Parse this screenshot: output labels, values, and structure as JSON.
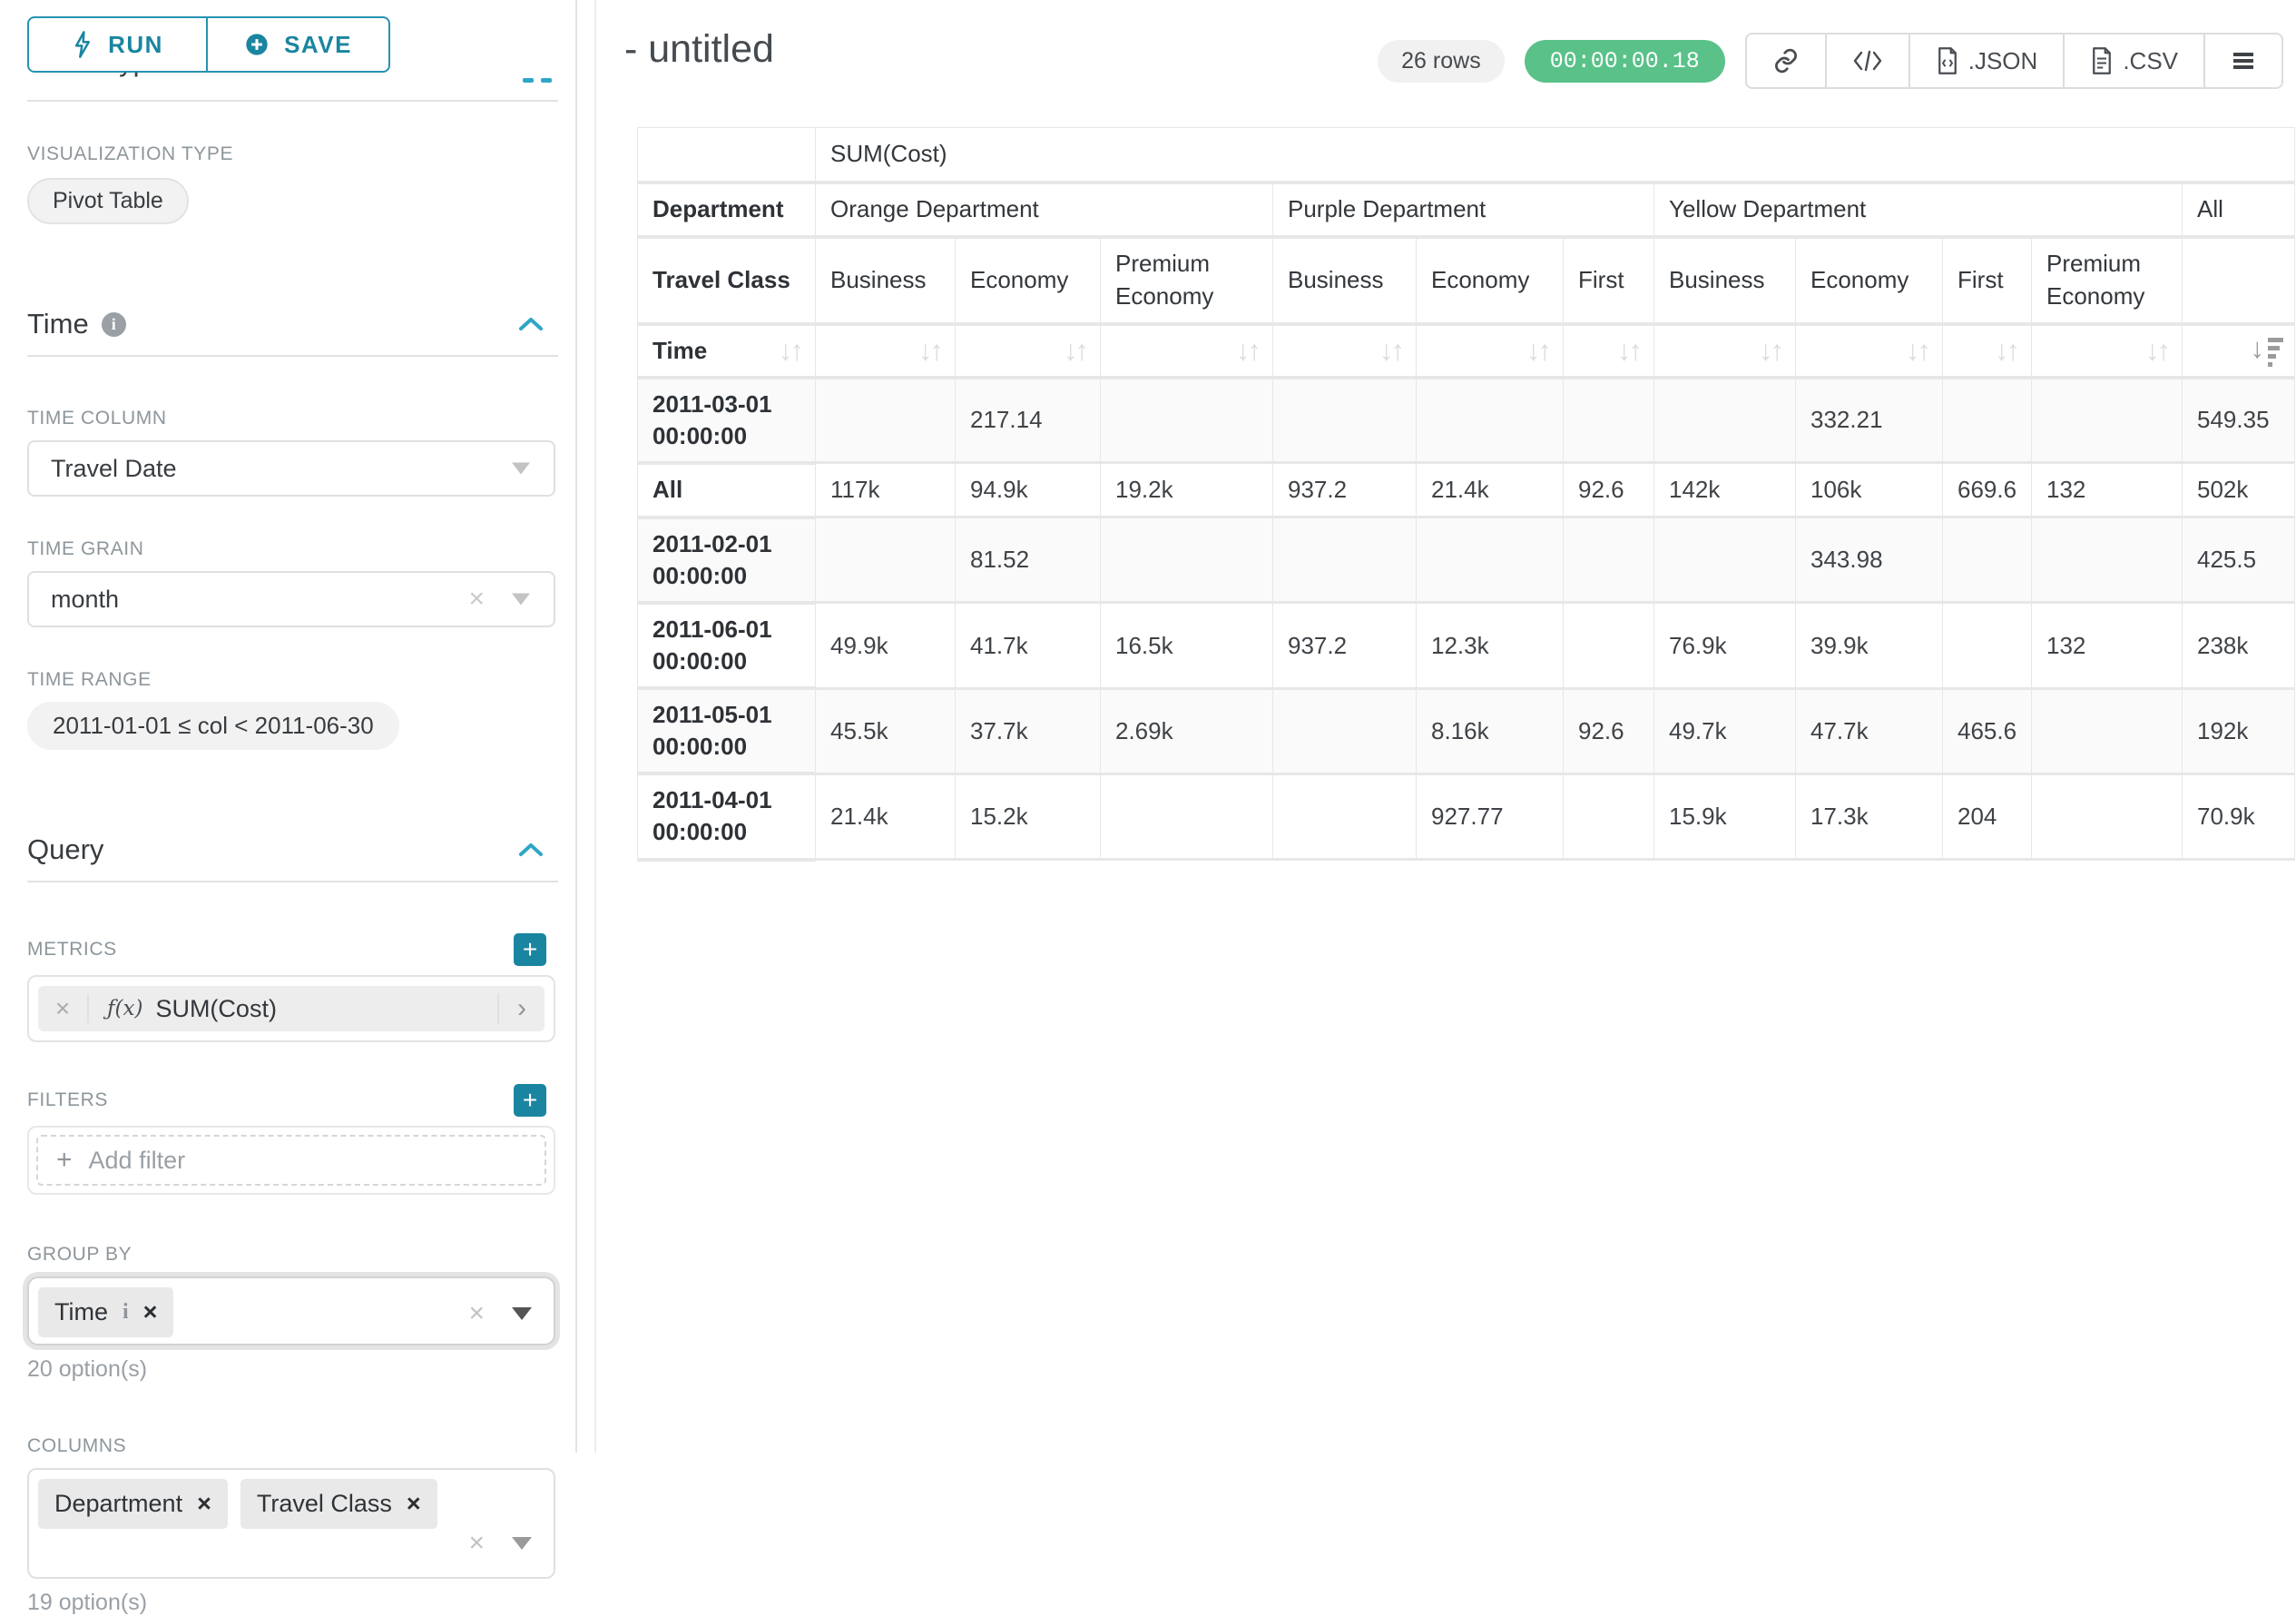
{
  "colors": {
    "accent": "#20a7c9",
    "accent_dark": "#1a85a0",
    "success": "#5ac189"
  },
  "sidebar": {
    "toolbar": {
      "run": "RUN",
      "save": "SAVE"
    },
    "chart_type_header": "Chart Type",
    "viz": {
      "label": "VISUALIZATION TYPE",
      "value": "Pivot Table"
    },
    "time": {
      "title": "Time",
      "column_label": "TIME COLUMN",
      "column_value": "Travel Date",
      "grain_label": "TIME GRAIN",
      "grain_value": "month",
      "range_label": "TIME RANGE",
      "range_value": "2011-01-01 ≤ col < 2011-06-30"
    },
    "query": {
      "title": "Query",
      "metrics_label": "METRICS",
      "metric_fx": "ƒ(x)",
      "metric_value": "SUM(Cost)",
      "filters_label": "FILTERS",
      "add_filter": "Add filter",
      "groupby_label": "GROUP BY",
      "groupby_pills": [
        "Time"
      ],
      "groupby_hint": "20 option(s)",
      "columns_label": "COLUMNS",
      "columns_pills": [
        "Department",
        "Travel Class"
      ],
      "columns_hint": "19 option(s)"
    }
  },
  "header": {
    "title": "- untitled",
    "rows_badge": "26 rows",
    "timer": "00:00:00.18",
    "export_json": ".JSON",
    "export_csv": ".CSV"
  },
  "pivot_table": {
    "metric_header": "SUM(Cost)",
    "col_axis_label": "Department",
    "col_axis2_label": "Travel Class",
    "row_axis_label": "Time",
    "groups": [
      {
        "label": "Orange Department",
        "cols": [
          "Business",
          "Economy",
          "Premium Economy"
        ]
      },
      {
        "label": "Purple Department",
        "cols": [
          "Business",
          "Economy",
          "First"
        ]
      },
      {
        "label": "Yellow Department",
        "cols": [
          "Business",
          "Economy",
          "First",
          "Premium Economy"
        ]
      },
      {
        "label": "All",
        "cols": [
          ""
        ]
      }
    ],
    "sorted_column": "All",
    "sort_direction": "desc",
    "rows": [
      {
        "label": "2011-03-01 00:00:00",
        "values": [
          "",
          "217.14",
          "",
          "",
          "",
          "",
          "",
          "332.21",
          "",
          "",
          "549.35"
        ]
      },
      {
        "label": "All",
        "values": [
          "117k",
          "94.9k",
          "19.2k",
          "937.2",
          "21.4k",
          "92.6",
          "142k",
          "106k",
          "669.6",
          "132",
          "502k"
        ]
      },
      {
        "label": "2011-02-01 00:00:00",
        "values": [
          "",
          "81.52",
          "",
          "",
          "",
          "",
          "",
          "343.98",
          "",
          "",
          "425.5"
        ]
      },
      {
        "label": "2011-06-01 00:00:00",
        "values": [
          "49.9k",
          "41.7k",
          "16.5k",
          "937.2",
          "12.3k",
          "",
          "76.9k",
          "39.9k",
          "",
          "132",
          "238k"
        ]
      },
      {
        "label": "2011-05-01 00:00:00",
        "values": [
          "45.5k",
          "37.7k",
          "2.69k",
          "",
          "8.16k",
          "92.6",
          "49.7k",
          "47.7k",
          "465.6",
          "",
          "192k"
        ]
      },
      {
        "label": "2011-04-01 00:00:00",
        "values": [
          "21.4k",
          "15.2k",
          "",
          "",
          "927.77",
          "",
          "15.9k",
          "17.3k",
          "204",
          "",
          "70.9k"
        ]
      }
    ]
  }
}
